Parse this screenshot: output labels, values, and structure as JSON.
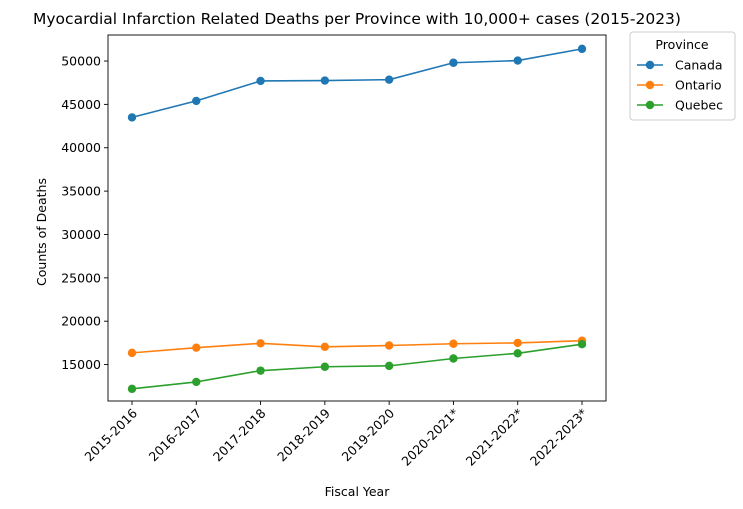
{
  "chart_data": {
    "type": "line",
    "title": "Myocardial Infarction Related Deaths per Province with 10,000+ cases (2015-2023)",
    "xlabel": "Fiscal Year",
    "ylabel": "Counts of Deaths",
    "categories": [
      "2015-2016",
      "2016-2017",
      "2017-2018",
      "2018-2019",
      "2019-2020",
      "2020-2021*",
      "2021-2022*",
      "2022-2023*"
    ],
    "ylim": [
      10800,
      53000
    ],
    "yticks": [
      15000,
      20000,
      25000,
      30000,
      35000,
      40000,
      45000,
      50000
    ],
    "grid": false,
    "legend": {
      "title": "Province",
      "placement": "outside-top-right"
    },
    "series": [
      {
        "name": "Canada",
        "color": "#1f77b4",
        "marker": "circle",
        "values": [
          43500,
          45400,
          47700,
          47750,
          47850,
          49800,
          50050,
          51400
        ]
      },
      {
        "name": "Ontario",
        "color": "#ff7f0e",
        "marker": "circle",
        "values": [
          16350,
          16950,
          17450,
          17050,
          17200,
          17400,
          17500,
          17750
        ]
      },
      {
        "name": "Quebec",
        "color": "#2ca02c",
        "marker": "circle",
        "values": [
          12200,
          13000,
          14300,
          14750,
          14850,
          15700,
          16300,
          17350
        ]
      }
    ]
  }
}
